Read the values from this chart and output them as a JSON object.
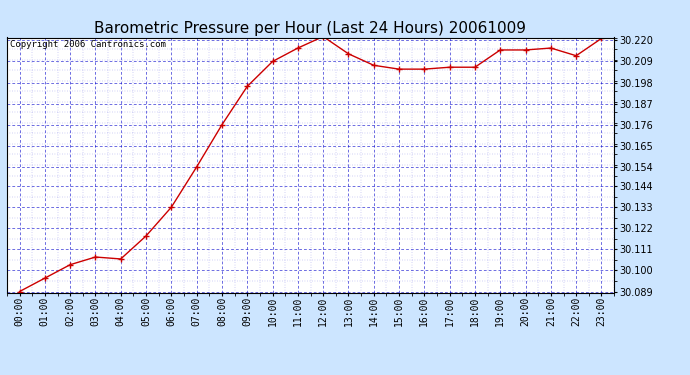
{
  "title": "Barometric Pressure per Hour (Last 24 Hours) 20061009",
  "copyright": "Copyright 2006 Cantronics.com",
  "x_labels": [
    "00:00",
    "01:00",
    "02:00",
    "03:00",
    "04:00",
    "05:00",
    "06:00",
    "07:00",
    "08:00",
    "09:00",
    "10:00",
    "11:00",
    "12:00",
    "13:00",
    "14:00",
    "15:00",
    "16:00",
    "17:00",
    "18:00",
    "19:00",
    "20:00",
    "21:00",
    "22:00",
    "23:00"
  ],
  "y_values": [
    30.089,
    30.096,
    30.103,
    30.107,
    30.106,
    30.118,
    30.133,
    30.154,
    30.176,
    30.196,
    30.209,
    30.216,
    30.222,
    30.213,
    30.207,
    30.205,
    30.205,
    30.206,
    30.206,
    30.215,
    30.215,
    30.216,
    30.212,
    30.221
  ],
  "y_min": 30.089,
  "y_max": 30.22,
  "y_ticks": [
    30.089,
    30.1,
    30.111,
    30.122,
    30.133,
    30.144,
    30.154,
    30.165,
    30.176,
    30.187,
    30.198,
    30.209,
    30.22
  ],
  "line_color": "#cc0000",
  "marker_color": "#cc0000",
  "bg_color": "#ffffff",
  "plot_bg": "#ffffff",
  "outer_bg": "#cce5ff",
  "grid_color": "#0000cc",
  "title_color": "#000000",
  "axis_color": "#000000",
  "border_color": "#000000",
  "title_fontsize": 11,
  "tick_fontsize": 7,
  "copyright_fontsize": 6.5
}
